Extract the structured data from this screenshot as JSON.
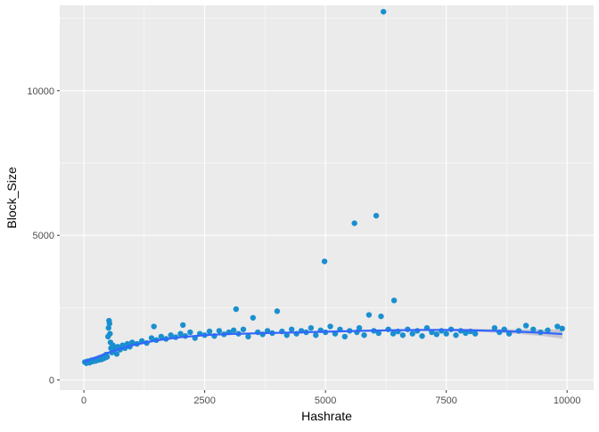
{
  "chart_data": {
    "type": "scatter",
    "title": "",
    "xlabel": "Hashrate",
    "ylabel": "Block_Size",
    "xlim": [
      -500,
      10550
    ],
    "ylim": [
      -350,
      12950
    ],
    "xticks": [
      0,
      2500,
      5000,
      7500,
      10000
    ],
    "yticks": [
      0,
      5000,
      10000
    ],
    "grid": true,
    "legend": "none",
    "colors": {
      "panel": "#ebebeb",
      "grid_major": "#ffffff",
      "points": "#1a8fd0",
      "smooth_line": "#3366ff",
      "confidence_band": "#b8b8c8"
    },
    "series": [
      {
        "kind": "points",
        "points": [
          [
            20,
            620
          ],
          [
            50,
            580
          ],
          [
            80,
            650
          ],
          [
            120,
            600
          ],
          [
            150,
            680
          ],
          [
            180,
            640
          ],
          [
            210,
            700
          ],
          [
            240,
            660
          ],
          [
            270,
            720
          ],
          [
            300,
            690
          ],
          [
            330,
            750
          ],
          [
            360,
            710
          ],
          [
            380,
            780
          ],
          [
            400,
            740
          ],
          [
            420,
            820
          ],
          [
            440,
            770
          ],
          [
            460,
            880
          ],
          [
            480,
            800
          ],
          [
            500,
            1500
          ],
          [
            510,
            1800
          ],
          [
            520,
            2050
          ],
          [
            530,
            1950
          ],
          [
            540,
            1600
          ],
          [
            550,
            1300
          ],
          [
            560,
            1100
          ],
          [
            580,
            950
          ],
          [
            600,
            1200
          ],
          [
            620,
            1000
          ],
          [
            650,
            1100
          ],
          [
            680,
            900
          ],
          [
            700,
            1150
          ],
          [
            750,
            1050
          ],
          [
            800,
            1200
          ],
          [
            850,
            1100
          ],
          [
            900,
            1250
          ],
          [
            950,
            1150
          ],
          [
            1000,
            1300
          ],
          [
            1100,
            1250
          ],
          [
            1200,
            1350
          ],
          [
            1300,
            1280
          ],
          [
            1400,
            1450
          ],
          [
            1450,
            1850
          ],
          [
            1500,
            1380
          ],
          [
            1600,
            1500
          ],
          [
            1700,
            1420
          ],
          [
            1800,
            1550
          ],
          [
            1900,
            1480
          ],
          [
            2000,
            1600
          ],
          [
            2050,
            1900
          ],
          [
            2100,
            1520
          ],
          [
            2200,
            1650
          ],
          [
            2300,
            1450
          ],
          [
            2400,
            1600
          ],
          [
            2500,
            1550
          ],
          [
            2600,
            1680
          ],
          [
            2700,
            1520
          ],
          [
            2800,
            1700
          ],
          [
            2900,
            1580
          ],
          [
            3000,
            1650
          ],
          [
            3100,
            1720
          ],
          [
            3150,
            2450
          ],
          [
            3200,
            1600
          ],
          [
            3300,
            1750
          ],
          [
            3400,
            1500
          ],
          [
            3500,
            2150
          ],
          [
            3600,
            1650
          ],
          [
            3700,
            1580
          ],
          [
            3800,
            1700
          ],
          [
            3900,
            1620
          ],
          [
            4000,
            2380
          ],
          [
            4100,
            1680
          ],
          [
            4200,
            1550
          ],
          [
            4300,
            1750
          ],
          [
            4400,
            1600
          ],
          [
            4500,
            1700
          ],
          [
            4600,
            1650
          ],
          [
            4700,
            1800
          ],
          [
            4800,
            1550
          ],
          [
            4900,
            1720
          ],
          [
            4980,
            4100
          ],
          [
            5000,
            1650
          ],
          [
            5100,
            1850
          ],
          [
            5200,
            1600
          ],
          [
            5300,
            1750
          ],
          [
            5400,
            1500
          ],
          [
            5500,
            1700
          ],
          [
            5600,
            5420
          ],
          [
            5650,
            1650
          ],
          [
            5700,
            1800
          ],
          [
            5800,
            1550
          ],
          [
            5900,
            2250
          ],
          [
            6000,
            1700
          ],
          [
            6050,
            5680
          ],
          [
            6100,
            1620
          ],
          [
            6150,
            2200
          ],
          [
            6200,
            12730
          ],
          [
            6300,
            1750
          ],
          [
            6400,
            1600
          ],
          [
            6420,
            2750
          ],
          [
            6500,
            1680
          ],
          [
            6600,
            1550
          ],
          [
            6700,
            1750
          ],
          [
            6800,
            1600
          ],
          [
            6900,
            1700
          ],
          [
            7000,
            1520
          ],
          [
            7100,
            1800
          ],
          [
            7200,
            1650
          ],
          [
            7300,
            1580
          ],
          [
            7400,
            1700
          ],
          [
            7500,
            1600
          ],
          [
            7600,
            1750
          ],
          [
            7700,
            1550
          ],
          [
            7800,
            1700
          ],
          [
            7900,
            1620
          ],
          [
            8000,
            1680
          ],
          [
            8100,
            1600
          ],
          [
            8500,
            1800
          ],
          [
            8600,
            1650
          ],
          [
            8700,
            1750
          ],
          [
            8800,
            1600
          ],
          [
            9000,
            1700
          ],
          [
            9150,
            1880
          ],
          [
            9300,
            1750
          ],
          [
            9450,
            1650
          ],
          [
            9600,
            1720
          ],
          [
            9800,
            1850
          ],
          [
            9900,
            1780
          ]
        ]
      },
      {
        "kind": "smooth",
        "x": [
          0,
          250,
          500,
          750,
          1000,
          1500,
          2000,
          2500,
          3000,
          3500,
          4000,
          4500,
          5000,
          5500,
          6000,
          6500,
          7000,
          7500,
          8000,
          8500,
          9000,
          9500,
          9900
        ],
        "y": [
          620,
          780,
          940,
          1080,
          1200,
          1370,
          1480,
          1550,
          1590,
          1610,
          1630,
          1650,
          1670,
          1690,
          1710,
          1720,
          1730,
          1730,
          1720,
          1700,
          1670,
          1630,
          1590
        ],
        "band_halfwidth": [
          70,
          55,
          45,
          40,
          35,
          35,
          30,
          30,
          30,
          30,
          30,
          30,
          30,
          30,
          30,
          35,
          35,
          40,
          45,
          60,
          80,
          110,
          160
        ]
      }
    ]
  }
}
